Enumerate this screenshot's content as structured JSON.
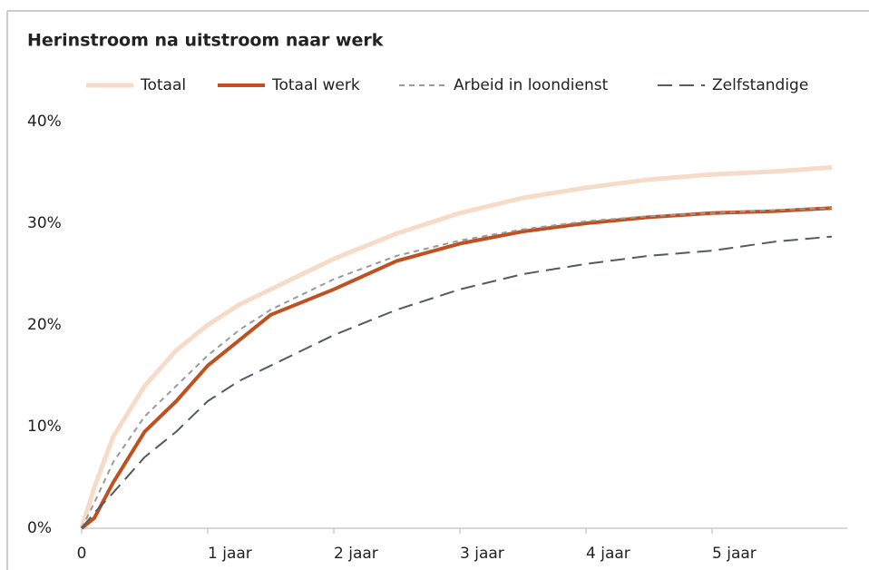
{
  "chart_data": {
    "type": "line",
    "title": "Herinstroom na uitstroom naar werk",
    "x": [
      0,
      0.1,
      0.25,
      0.5,
      0.75,
      1,
      1.25,
      1.5,
      2,
      2.5,
      3,
      3.5,
      4,
      4.5,
      5,
      5.5,
      5.95
    ],
    "series": [
      {
        "name": "Totaal",
        "color": "#f6dcc8",
        "dash": "solid",
        "width": 5,
        "values": [
          0,
          4,
          9,
          14,
          17.5,
          20,
          22,
          23.5,
          26.5,
          29,
          31,
          32.5,
          33.5,
          34.3,
          34.8,
          35.1,
          35.5
        ]
      },
      {
        "name": "Totaal werk",
        "color": "#c0501f",
        "dash": "solid",
        "width": 4,
        "values": [
          0,
          1,
          4.5,
          9.5,
          12.5,
          16,
          18.5,
          21,
          23.5,
          26.3,
          28,
          29.2,
          30,
          30.6,
          31,
          31.2,
          31.5
        ]
      },
      {
        "name": "Arbeid in loondienst",
        "color": "#9a9a9a",
        "dash": "dashed",
        "width": 2,
        "values": [
          0,
          2.5,
          6.5,
          11,
          14,
          17,
          19.5,
          21.5,
          24.5,
          26.8,
          28.3,
          29.4,
          30.2,
          30.7,
          31,
          31.3,
          31.5
        ]
      },
      {
        "name": "Zelfstandige",
        "color": "#555a60",
        "dash": "longdash",
        "width": 2,
        "values": [
          0,
          1.5,
          3.5,
          7,
          9.5,
          12.5,
          14.5,
          16,
          19,
          21.5,
          23.5,
          25,
          26,
          26.8,
          27.3,
          28.2,
          28.7
        ]
      }
    ],
    "xlim": [
      0,
      6
    ],
    "xticks": [
      0,
      {
        "value": 1,
        "label": "1 jaar"
      },
      {
        "value": 2,
        "label": "2 jaar"
      },
      {
        "value": 3,
        "label": "3 jaar"
      },
      {
        "value": 4,
        "label": "4 jaar"
      },
      {
        "value": 5,
        "label": "5 jaar"
      }
    ],
    "ylim": [
      0,
      40
    ],
    "yticks": [
      {
        "value": 0,
        "label": "0%"
      },
      {
        "value": 10,
        "label": "10%"
      },
      {
        "value": 20,
        "label": "20%"
      },
      {
        "value": 30,
        "label": "30%"
      },
      {
        "value": 40,
        "label": "40%"
      }
    ],
    "grid": false
  }
}
